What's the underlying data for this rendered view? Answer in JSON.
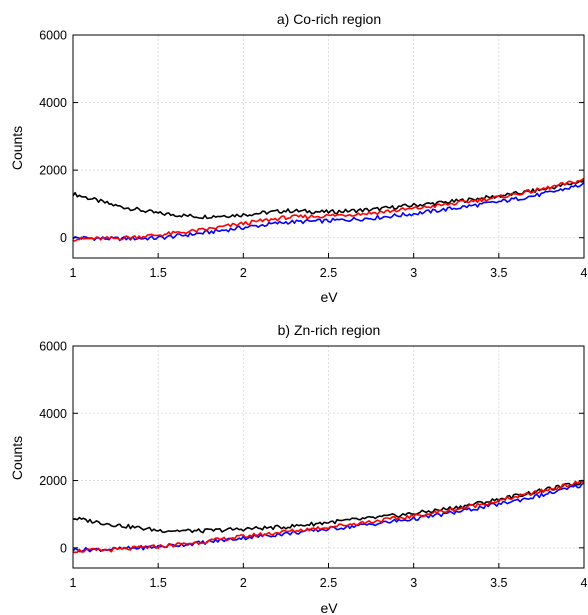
{
  "chart_data": [
    {
      "type": "line",
      "title": "a) Co-rich region",
      "xlabel": "eV",
      "ylabel": "Counts",
      "xlim": [
        1,
        4
      ],
      "ylim": [
        -600,
        6000
      ],
      "xticks": [
        1,
        1.5,
        2,
        2.5,
        3,
        3.5,
        4
      ],
      "xtick_labels": [
        "1",
        "1.5",
        "2",
        "2.5",
        "3",
        "3.5",
        "4"
      ],
      "yticks": [
        0,
        2000,
        4000,
        6000
      ],
      "ytick_labels": [
        "0",
        "2000",
        "4000",
        "6000"
      ],
      "grid": true,
      "x": [
        1.0,
        1.25,
        1.5,
        1.75,
        2.0,
        2.25,
        2.5,
        2.75,
        3.0,
        3.25,
        3.5,
        3.75,
        4.0
      ],
      "series": [
        {
          "color": "#000000",
          "values": [
            1300,
            950,
            720,
            620,
            680,
            800,
            760,
            830,
            960,
            1080,
            1230,
            1420,
            1680
          ]
        },
        {
          "color": "#0000ff",
          "values": [
            0,
            -30,
            -10,
            130,
            300,
            460,
            500,
            580,
            710,
            880,
            1060,
            1280,
            1580
          ]
        },
        {
          "color": "#ff0000",
          "values": [
            -40,
            -20,
            80,
            220,
            420,
            600,
            650,
            730,
            860,
            1020,
            1200,
            1430,
            1720
          ]
        }
      ]
    },
    {
      "type": "line",
      "title": "b) Zn-rich region",
      "xlabel": "eV",
      "ylabel": "Counts",
      "xlim": [
        1,
        4
      ],
      "ylim": [
        -600,
        6000
      ],
      "xticks": [
        1,
        1.5,
        2,
        2.5,
        3,
        3.5,
        4
      ],
      "xtick_labels": [
        "1",
        "1.5",
        "2",
        "2.5",
        "3",
        "3.5",
        "4"
      ],
      "yticks": [
        0,
        2000,
        4000,
        6000
      ],
      "ytick_labels": [
        "0",
        "2000",
        "4000",
        "6000"
      ],
      "grid": true,
      "x": [
        1.0,
        1.25,
        1.5,
        1.75,
        2.0,
        2.25,
        2.5,
        2.75,
        3.0,
        3.25,
        3.5,
        3.75,
        4.0
      ],
      "series": [
        {
          "color": "#000000",
          "values": [
            880,
            680,
            520,
            500,
            560,
            620,
            760,
            880,
            1020,
            1200,
            1440,
            1700,
            1960
          ]
        },
        {
          "color": "#0000ff",
          "values": [
            -60,
            -40,
            30,
            150,
            300,
            420,
            560,
            700,
            860,
            1060,
            1300,
            1560,
            1880
          ]
        },
        {
          "color": "#ff0000",
          "values": [
            -90,
            -60,
            40,
            170,
            340,
            480,
            620,
            780,
            940,
            1150,
            1400,
            1680,
            1980
          ]
        }
      ]
    }
  ]
}
